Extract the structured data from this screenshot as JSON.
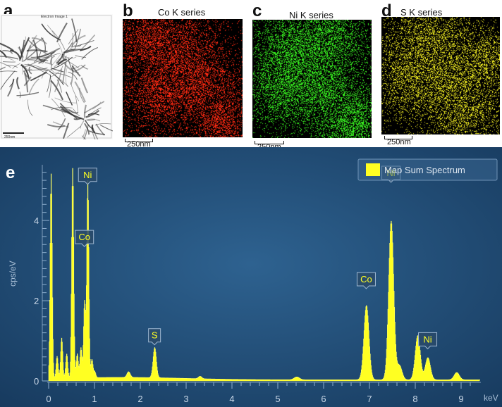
{
  "panels": {
    "a": {
      "label": "a",
      "header": "Electron Image 1",
      "scale": "250nm"
    },
    "b": {
      "label": "b",
      "title": "Co K series",
      "scale": "250nm",
      "color": "#ff2a12"
    },
    "c": {
      "label": "c",
      "title": "Ni K series",
      "scale": "250nm",
      "color": "#38f020"
    },
    "d": {
      "label": "d",
      "title": "S K series",
      "scale": "250nm",
      "color": "#f2ee22"
    }
  },
  "spectrum_panel": {
    "label": "e"
  },
  "chart_data": {
    "type": "area",
    "title": "",
    "xlabel": "keV",
    "ylabel": "cps/eV",
    "xlim": [
      0,
      9.4
    ],
    "ylim": [
      0,
      5.3
    ],
    "xticks": [
      0,
      1,
      2,
      3,
      4,
      5,
      6,
      7,
      8,
      9
    ],
    "yticks": [
      0,
      2,
      4
    ],
    "legend": {
      "entries": [
        "Map Sum Spectrum"
      ],
      "position": "top-right"
    },
    "colors": {
      "background": "#1e4a72",
      "fill": "#ffff22",
      "text": "#c8d6e6",
      "label_box": "#2a4a6a"
    },
    "series": [
      {
        "name": "Map Sum Spectrum",
        "peaks": [
          {
            "x": 0.05,
            "y": 5.1
          },
          {
            "x": 0.18,
            "y": 0.55
          },
          {
            "x": 0.28,
            "y": 1.0
          },
          {
            "x": 0.39,
            "y": 0.6
          },
          {
            "x": 0.52,
            "y": 5.3
          },
          {
            "x": 0.62,
            "y": 0.6
          },
          {
            "x": 0.7,
            "y": 0.75
          },
          {
            "x": 0.78,
            "y": 1.9
          },
          {
            "x": 0.85,
            "y": 4.9
          },
          {
            "x": 0.94,
            "y": 0.45
          },
          {
            "x": 1.0,
            "y": 0.15
          },
          {
            "x": 1.74,
            "y": 0.14
          },
          {
            "x": 2.31,
            "y": 0.75
          },
          {
            "x": 3.3,
            "y": 0.06
          },
          {
            "x": 5.41,
            "y": 0.07
          },
          {
            "x": 6.93,
            "y": 1.85
          },
          {
            "x": 7.47,
            "y": 3.95
          },
          {
            "x": 7.65,
            "y": 0.35
          },
          {
            "x": 8.05,
            "y": 1.1
          },
          {
            "x": 8.27,
            "y": 0.55
          },
          {
            "x": 8.9,
            "y": 0.18
          }
        ]
      }
    ],
    "annotations": [
      {
        "text": "Ni",
        "x": 0.85,
        "y": 4.9
      },
      {
        "text": "Co",
        "x": 0.78,
        "y": 3.35
      },
      {
        "text": "S",
        "x": 2.31,
        "y": 0.9
      },
      {
        "text": "Co",
        "x": 6.93,
        "y": 2.3
      },
      {
        "text": "Ni",
        "x": 7.47,
        "y": 4.95
      },
      {
        "text": "Ni",
        "x": 8.27,
        "y": 0.8
      }
    ]
  }
}
